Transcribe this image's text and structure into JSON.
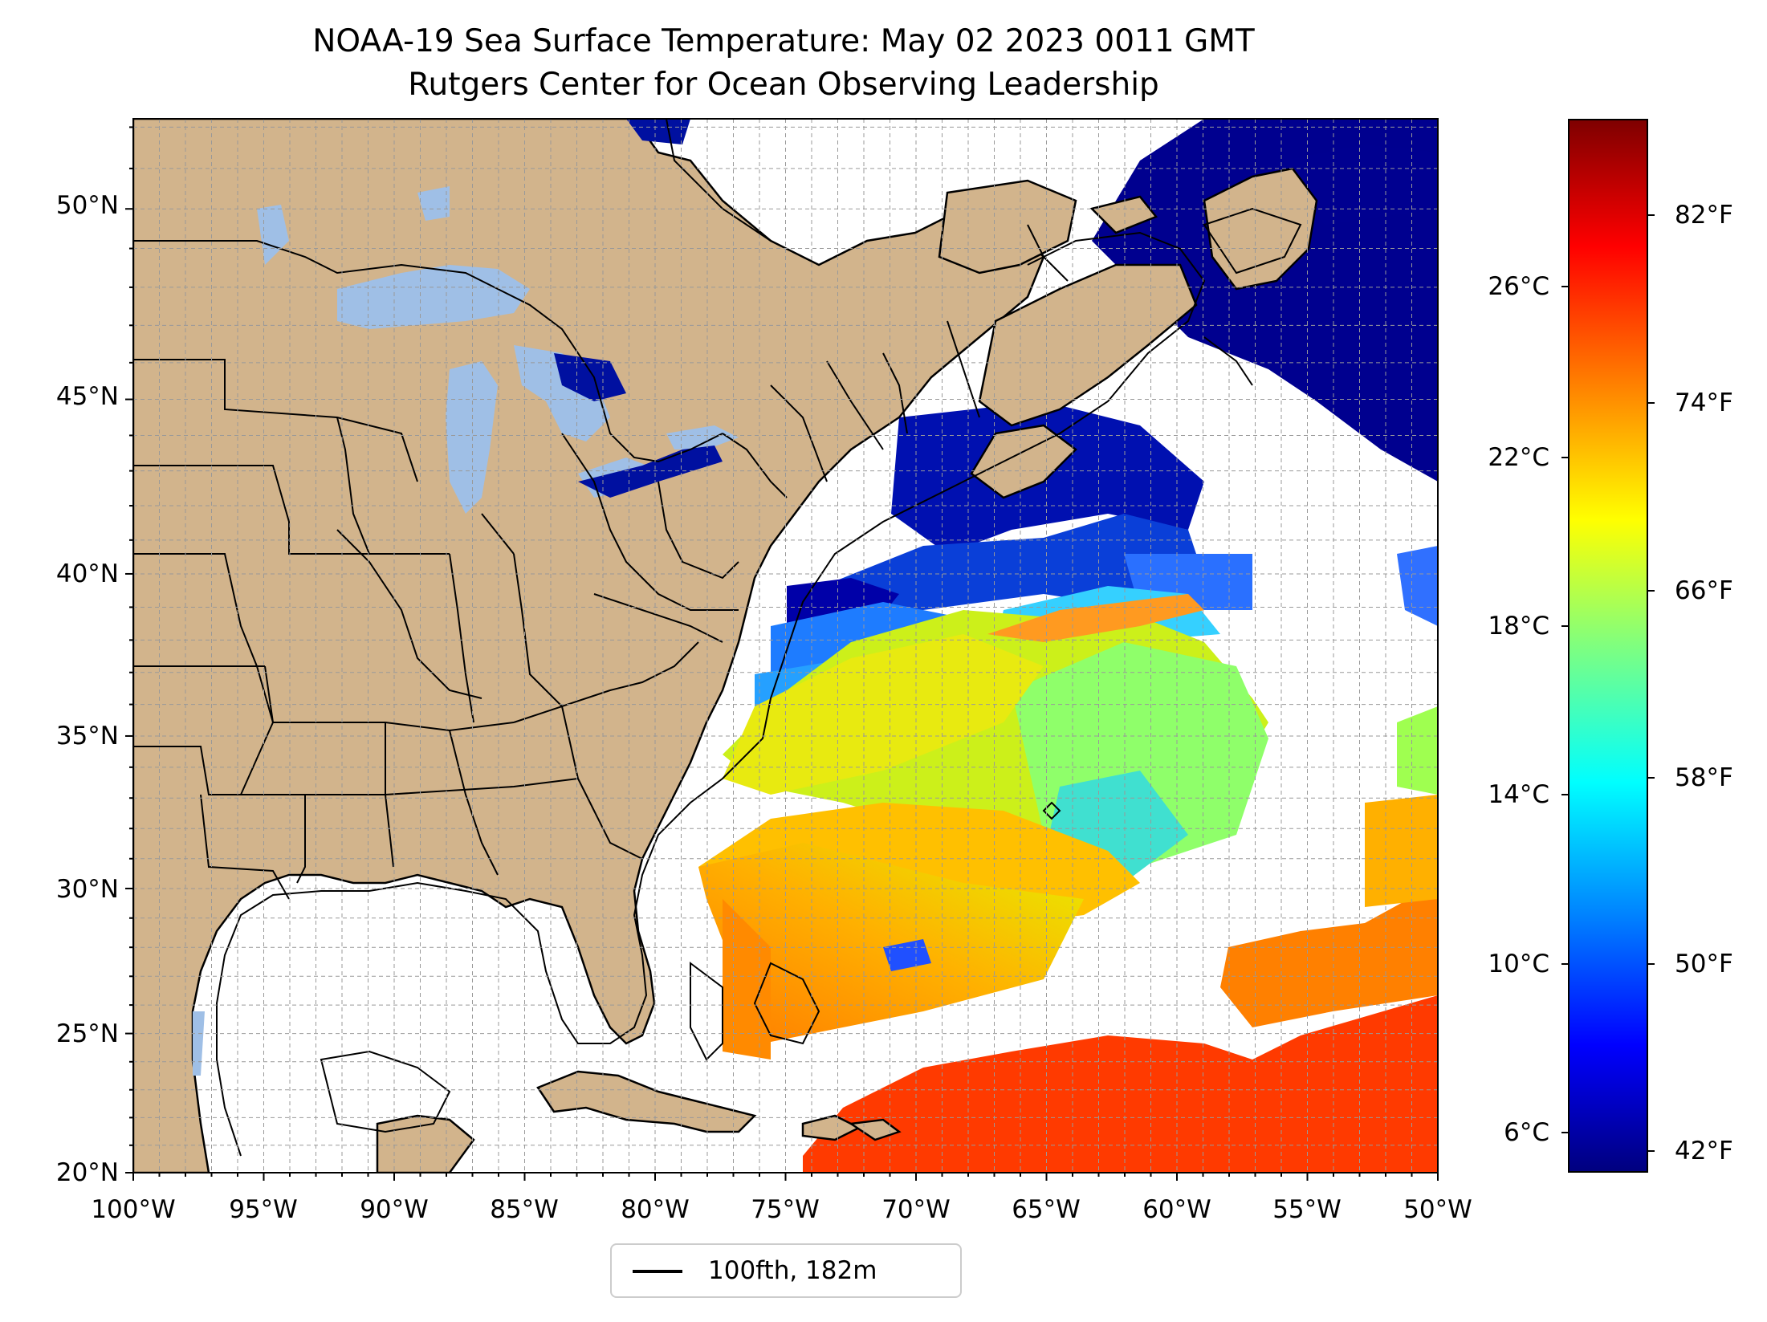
{
  "title_line1": "NOAA-19 Sea Surface Temperature: May 02 2023 0011 GMT",
  "title_line2": "Rutgers Center for Ocean Observing Leadership",
  "map": {
    "lon_range": [
      -100,
      -50
    ],
    "lat_range": [
      20,
      52.2
    ],
    "land_color": "#d2b48c",
    "lake_color": "#9fbfe6",
    "no_data_color": "#ffffff",
    "gridlines": true
  },
  "lat_labels": [
    "50°N",
    "45°N",
    "40°N",
    "35°N",
    "30°N",
    "25°N",
    "20°N"
  ],
  "lon_labels": [
    "100°W",
    "95°W",
    "90°W",
    "85°W",
    "80°W",
    "75°W",
    "70°W",
    "65°W",
    "60°W",
    "55°W",
    "50°W"
  ],
  "legend": {
    "label": "100fth, 182m",
    "line_color": "#000000"
  },
  "colorbar": {
    "colormap": "jet",
    "celsius_labels": [
      "26°C",
      "22°C",
      "18°C",
      "14°C",
      "10°C",
      "6°C"
    ],
    "fahrenheit_labels": [
      "82°F",
      "74°F",
      "66°F",
      "58°F",
      "50°F",
      "42°F"
    ]
  }
}
